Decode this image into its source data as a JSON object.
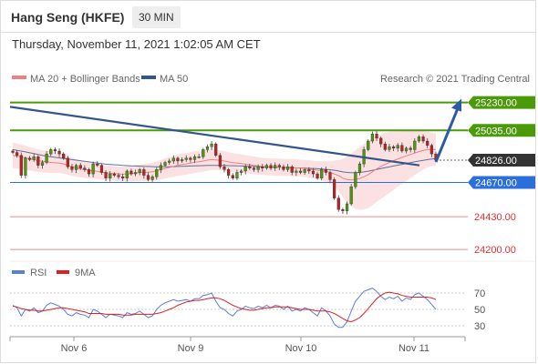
{
  "header": {
    "title": "Hang Seng (HKFE)",
    "timeframe": "30 MIN"
  },
  "datetime": "Thursday, November 11, 2021 1:02:05 AM CET",
  "legend": {
    "ma20_label": "MA 20 + Bollinger Bands",
    "ma50_label": "MA 50",
    "credit": "Research © 2021 Trading Central",
    "ma20_color": "#f08080",
    "ma50_color": "#34558b"
  },
  "rsi_legend": {
    "rsi_label": "RSI",
    "ma_label": "9MA",
    "rsi_color": "#5b7fd6",
    "ma_color": "#e02020"
  },
  "chart_data": [
    {
      "type": "candlestick",
      "ylim": [
        24150,
        25330
      ],
      "x_labels": [
        "Nov 6",
        "Nov 9",
        "Nov 10",
        "Nov 11"
      ],
      "levels": [
        {
          "value": 25230.0,
          "label": "25230.00",
          "kind": "resistance",
          "color": "#4a9a0a"
        },
        {
          "value": 25035.0,
          "label": "25035.00",
          "kind": "resistance",
          "color": "#4a9a0a"
        },
        {
          "value": 24826.0,
          "label": "24826.00",
          "kind": "last",
          "color": "#333333"
        },
        {
          "value": 24670.0,
          "label": "24670.00",
          "kind": "pivot",
          "color": "#2a6fdb"
        },
        {
          "value": 24430.0,
          "label": "24430.00",
          "kind": "support",
          "color": "#e03030"
        },
        {
          "value": 24200.0,
          "label": "24200.00",
          "kind": "support",
          "color": "#e03030"
        }
      ],
      "closes": [
        24880,
        24860,
        24720,
        24840,
        24830,
        24850,
        24790,
        24810,
        24870,
        24900,
        24890,
        24870,
        24840,
        24780,
        24760,
        24790,
        24770,
        24760,
        24730,
        24800,
        24790,
        24740,
        24700,
        24730,
        24720,
        24710,
        24700,
        24750,
        24730,
        24740,
        24760,
        24720,
        24690,
        24710,
        24760,
        24790,
        24810,
        24820,
        24840,
        24820,
        24830,
        24840,
        24830,
        24850,
        24850,
        24900,
        24920,
        24940,
        24860,
        24780,
        24760,
        24720,
        24700,
        24740,
        24750,
        24780,
        24770,
        24760,
        24780,
        24770,
        24790,
        24770,
        24790,
        24780,
        24760,
        24780,
        24740,
        24750,
        24740,
        24760,
        24750,
        24730,
        24700,
        24760,
        24740,
        24690,
        24560,
        24480,
        24470,
        24520,
        24640,
        24740,
        24800,
        24900,
        24960,
        25010,
        24980,
        24940,
        24900,
        24920,
        24910,
        24930,
        24890,
        24910,
        24900,
        24960,
        24990,
        24960,
        24930,
        24870,
        24826
      ],
      "ma20": [
        24860,
        24855,
        24850,
        24842,
        24835,
        24830,
        24822,
        24818,
        24815,
        24810,
        24808,
        24805,
        24800,
        24790,
        24780,
        24772,
        24765,
        24760,
        24755,
        24752,
        24748,
        24742,
        24738,
        24735,
        24732,
        24730,
        24728,
        24730,
        24732,
        24735,
        24738,
        24740,
        24742,
        24745,
        24752,
        24760,
        24768,
        24775,
        24782,
        24790,
        24796,
        24800,
        24806,
        24812,
        24815,
        24820,
        24826,
        24830,
        24828,
        24824,
        24820,
        24814,
        24808,
        24805,
        24802,
        24798,
        24794,
        24790,
        24786,
        24782,
        24780,
        24778,
        24777,
        24776,
        24775,
        24774,
        24773,
        24772,
        24770,
        24768,
        24765,
        24760,
        24755,
        24752,
        24748,
        24740,
        24730,
        24718,
        24700,
        24690,
        24688,
        24690,
        24698,
        24710,
        24725,
        24745,
        24765,
        24782,
        24796,
        24810,
        24822,
        24834,
        24845,
        24856,
        24866,
        24876,
        24886,
        24894,
        24900,
        24902,
        24900
      ],
      "ma50": [
        24900,
        24895,
        24890,
        24884,
        24878,
        24872,
        24866,
        24860,
        24855,
        24850,
        24846,
        24842,
        24838,
        24834,
        24830,
        24826,
        24822,
        24818,
        24814,
        24810,
        24806,
        24802,
        24798,
        24796,
        24794,
        24792,
        24790,
        24788,
        24786,
        24785,
        24784,
        24783,
        24782,
        24781,
        24780,
        24780,
        24780,
        24780,
        24781,
        24782,
        24783,
        24784,
        24785,
        24786,
        24787,
        24788,
        24789,
        24790,
        24790,
        24790,
        24789,
        24788,
        24787,
        24786,
        24785,
        24784,
        24783,
        24782,
        24781,
        24780,
        24779,
        24778,
        24777,
        24776,
        24775,
        24774,
        24773,
        24772,
        24771,
        24770,
        24769,
        24768,
        24766,
        24764,
        24762,
        24759,
        24755,
        24750,
        24744,
        24740,
        24738,
        24738,
        24740,
        24744,
        24749,
        24755,
        24761,
        24767,
        24773,
        24779,
        24785,
        24791,
        24797,
        24803,
        24809,
        24815,
        24820,
        24825,
        24830,
        24834,
        24836
      ],
      "bb_width": [
        90,
        88,
        86,
        84,
        82,
        80,
        78,
        78,
        76,
        74,
        72,
        70,
        68,
        66,
        64,
        62,
        60,
        58,
        56,
        55,
        54,
        53,
        52,
        52,
        52,
        52,
        53,
        54,
        55,
        56,
        58,
        60,
        62,
        64,
        66,
        68,
        70,
        72,
        74,
        75,
        76,
        76,
        76,
        76,
        75,
        74,
        73,
        72,
        71,
        70,
        69,
        68,
        67,
        66,
        65,
        64,
        63,
        62,
        61,
        60,
        60,
        60,
        60,
        60,
        60,
        60,
        60,
        60,
        60,
        60,
        61,
        62,
        64,
        66,
        70,
        78,
        92,
        110,
        135,
        160,
        185,
        205,
        220,
        230,
        235,
        235,
        232,
        228,
        222,
        215,
        205,
        195,
        185,
        175,
        165,
        155,
        145,
        135,
        125,
        118,
        112
      ],
      "trendline": {
        "from": [
          0,
          25200
        ],
        "to": [
          100,
          24790
        ]
      },
      "forecast_arrow": {
        "from": [
          100,
          24826
        ],
        "to": [
          104,
          25230
        ]
      }
    },
    {
      "type": "line",
      "title": "RSI",
      "ylim": [
        20,
        80
      ],
      "y_ticks": [
        70,
        50,
        30
      ],
      "rsi": [
        55,
        52,
        42,
        50,
        48,
        52,
        46,
        48,
        55,
        58,
        56,
        54,
        50,
        44,
        42,
        46,
        44,
        43,
        40,
        50,
        48,
        44,
        40,
        44,
        43,
        42,
        40,
        46,
        44,
        45,
        48,
        44,
        40,
        42,
        50,
        55,
        58,
        60,
        62,
        60,
        61,
        62,
        60,
        63,
        63,
        67,
        68,
        70,
        60,
        52,
        50,
        45,
        42,
        48,
        50,
        54,
        52,
        51,
        54,
        52,
        55,
        52,
        55,
        54,
        50,
        54,
        48,
        50,
        48,
        52,
        50,
        46,
        42,
        52,
        48,
        42,
        32,
        28,
        28,
        35,
        48,
        60,
        66,
        72,
        74,
        76,
        72,
        66,
        62,
        65,
        63,
        66,
        60,
        64,
        62,
        68,
        70,
        66,
        62,
        56,
        50
      ],
      "ma9": [
        54,
        53,
        51,
        50,
        49,
        49,
        48,
        48,
        49,
        50,
        51,
        52,
        52,
        51,
        50,
        49,
        48,
        47,
        45,
        45,
        45,
        45,
        44,
        44,
        44,
        44,
        43,
        43,
        43,
        44,
        44,
        44,
        44,
        44,
        45,
        46,
        48,
        50,
        52,
        55,
        57,
        59,
        60,
        61,
        61,
        62,
        63,
        64,
        64,
        63,
        61,
        58,
        55,
        53,
        51,
        50,
        49,
        49,
        50,
        51,
        52,
        52,
        53,
        53,
        53,
        53,
        52,
        51,
        50,
        50,
        50,
        49,
        48,
        48,
        48,
        47,
        45,
        42,
        39,
        36,
        35,
        37,
        40,
        45,
        51,
        57,
        63,
        67,
        70,
        71,
        70,
        69,
        67,
        66,
        65,
        65,
        65,
        65,
        65,
        64,
        62
      ]
    }
  ]
}
